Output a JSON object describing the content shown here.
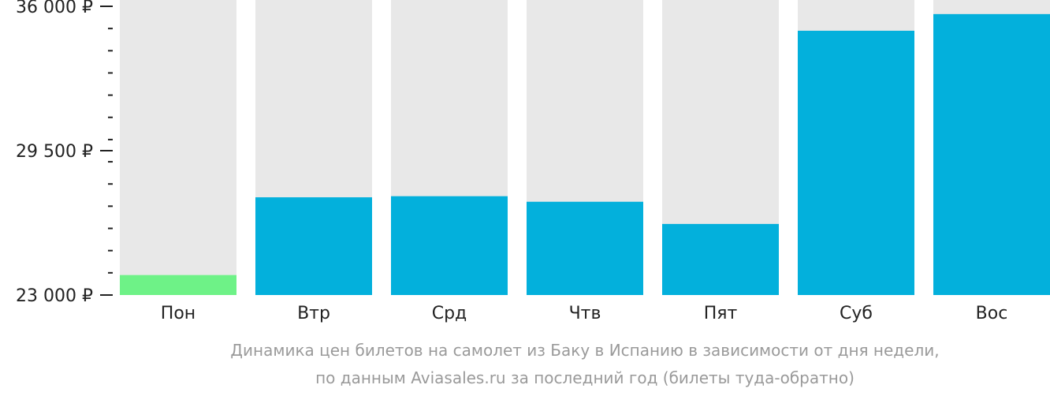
{
  "chart_data": {
    "type": "bar",
    "categories": [
      "Пон",
      "Втр",
      "Срд",
      "Чтв",
      "Пят",
      "Суб",
      "Вос"
    ],
    "values": [
      23900,
      27400,
      27450,
      27200,
      26200,
      34900,
      35650
    ],
    "highlight_index": 0,
    "ylim": [
      23000,
      36000
    ],
    "yticks": [
      {
        "value": 23000,
        "label": "23 000 ₽"
      },
      {
        "value": 29500,
        "label": "29 500 ₽"
      },
      {
        "value": 36000,
        "label": "36 000 ₽"
      }
    ],
    "minor_tick_step": 1000,
    "grid": false,
    "caption_line1": "Динамика цен билетов на самолет из Баку в Испанию в зависимости от дня недели,",
    "caption_line2": "по данным Aviasales.ru за последний год (билеты туда-обратно)",
    "colors": {
      "bar": "#03b0dc",
      "highlight": "#6ef287",
      "background_bar": "#e8e8e8",
      "axis_text": "#222222",
      "caption": "#9a9a9a"
    }
  }
}
